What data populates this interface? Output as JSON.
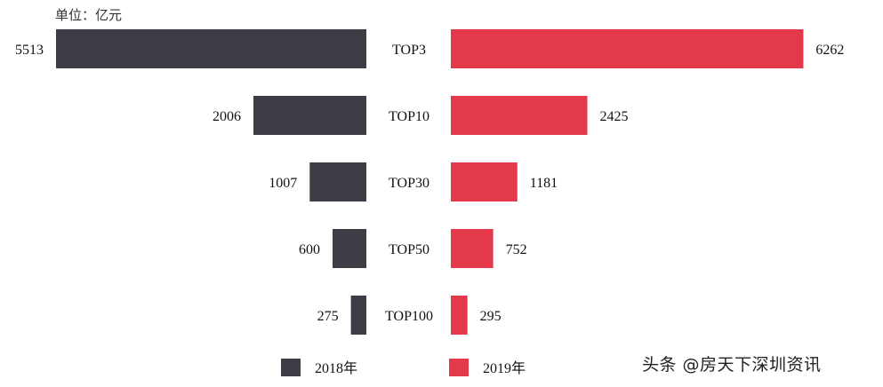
{
  "unit_label": "单位：亿元",
  "watermark": "头条 @房天下深圳资讯",
  "chart_data": {
    "type": "bar",
    "orientation": "horizontal-butterfly",
    "categories": [
      "TOP3",
      "TOP10",
      "TOP30",
      "TOP50",
      "TOP100"
    ],
    "series": [
      {
        "name": "2018年",
        "values": [
          5513,
          2006,
          1007,
          600,
          275
        ],
        "color": "#3c3d45",
        "side": "left"
      },
      {
        "name": "2019年",
        "values": [
          6262,
          2425,
          1181,
          752,
          295
        ],
        "color": "#e3394b",
        "side": "right"
      }
    ],
    "unit": "亿元",
    "legend_position": "bottom",
    "grid": false
  }
}
